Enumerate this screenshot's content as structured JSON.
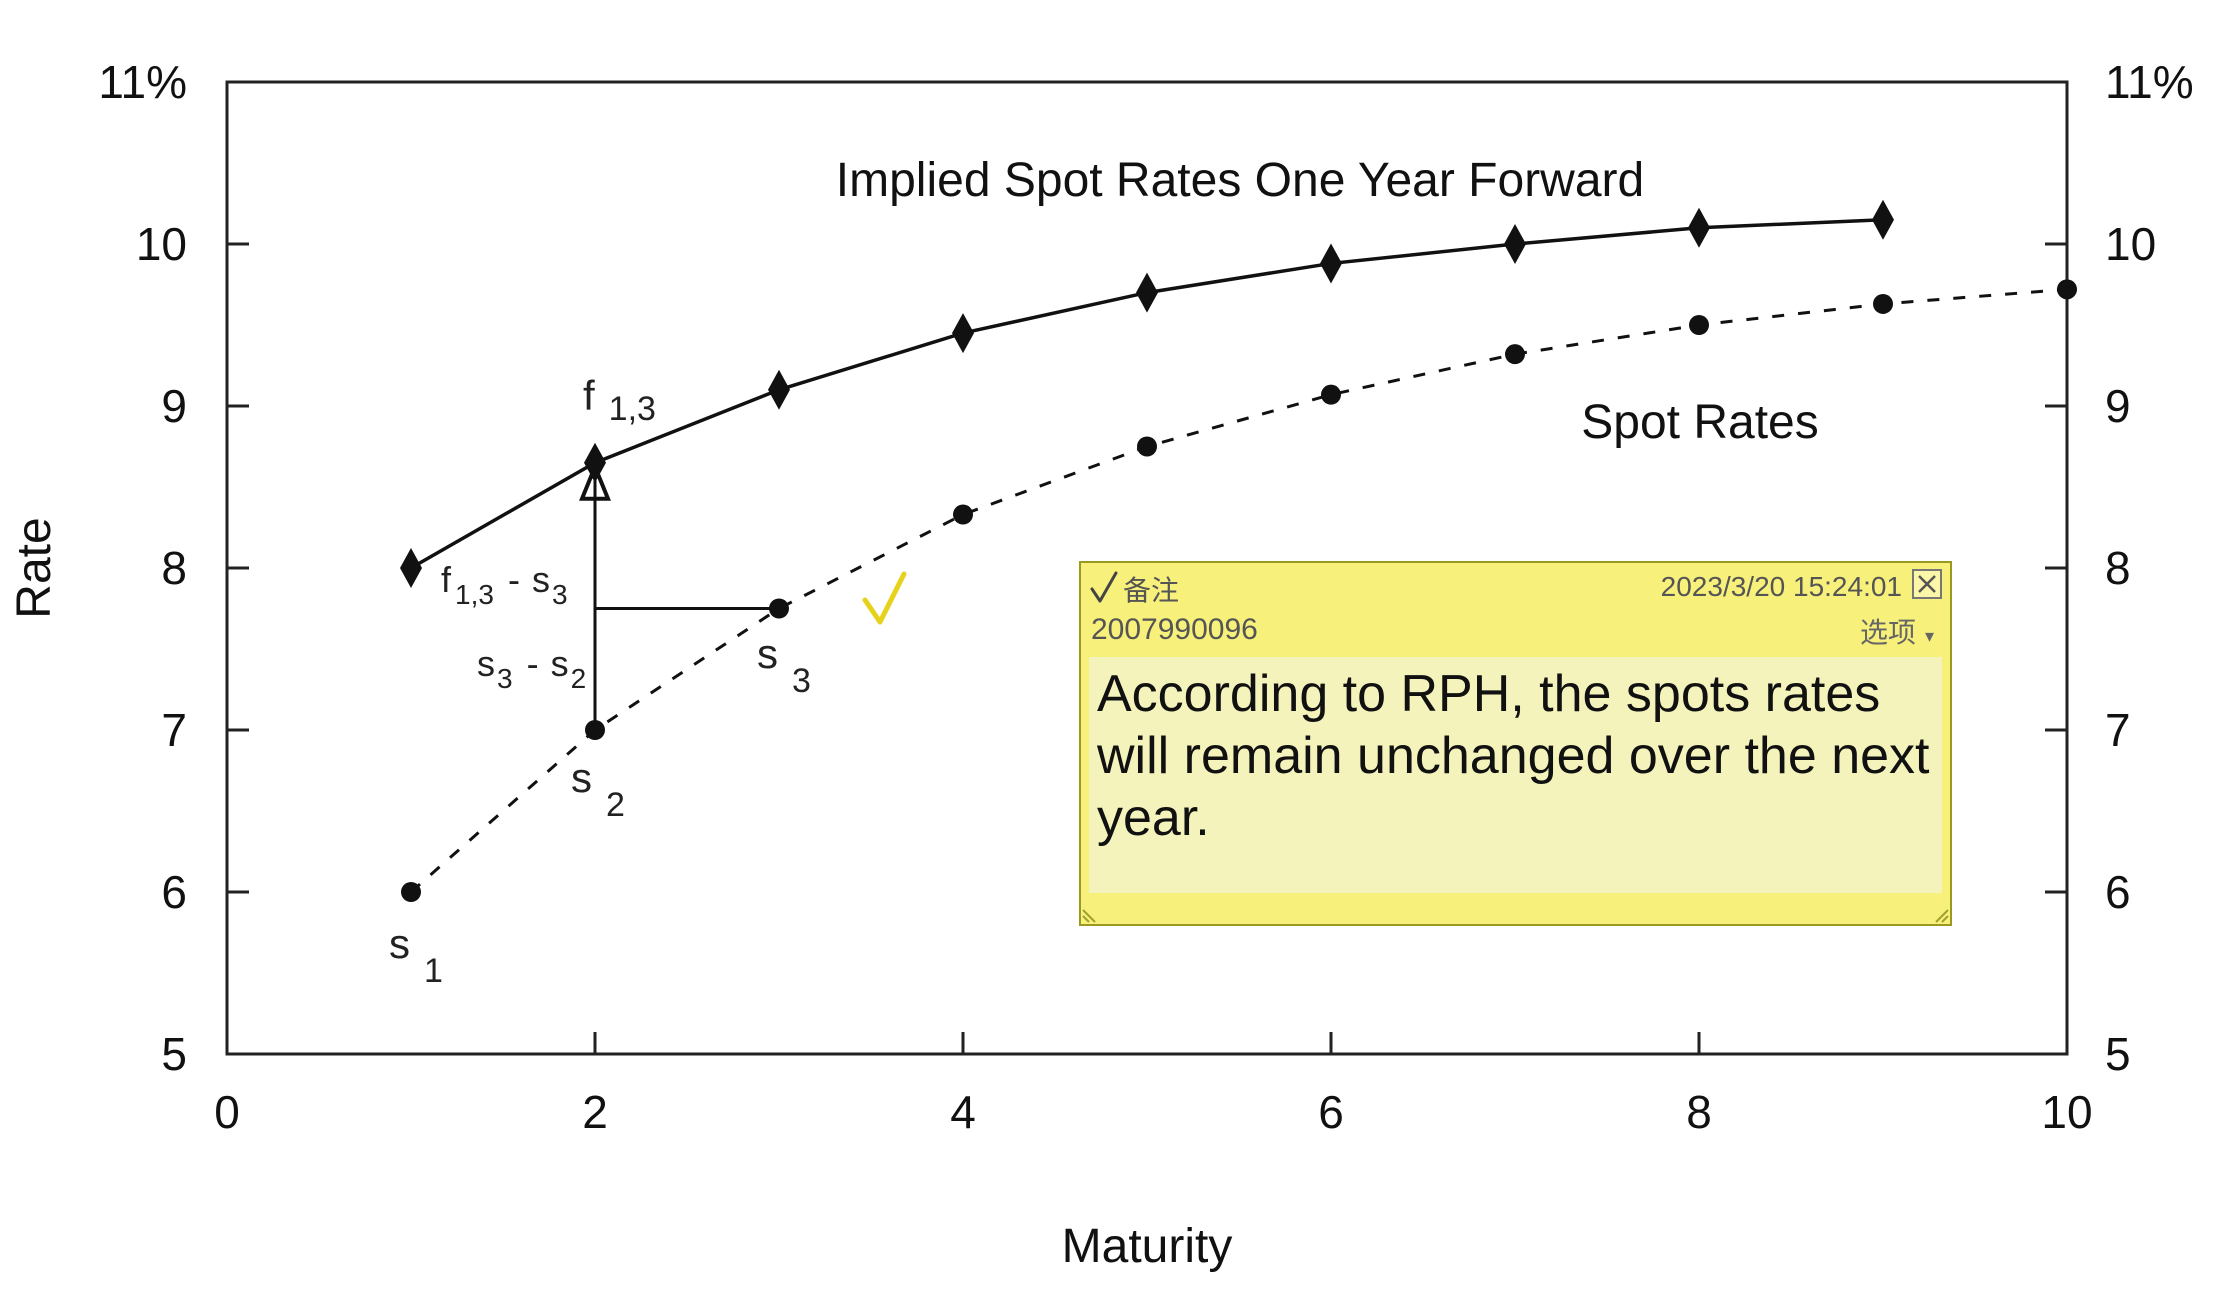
{
  "chart_data": {
    "type": "line",
    "title": "",
    "xlabel": "Maturity",
    "ylabel": "Rate",
    "xlim": [
      0,
      10
    ],
    "ylim": [
      5,
      11
    ],
    "x_ticks": [
      "0",
      "2",
      "4",
      "6",
      "8",
      "10"
    ],
    "y_ticks": [
      "5",
      "6",
      "7",
      "8",
      "9",
      "10",
      "11%"
    ],
    "right_y_ticks": [
      "5",
      "6",
      "7",
      "8",
      "9",
      "10",
      "11%"
    ],
    "grid": false,
    "series": [
      {
        "name": "Implied Spot Rates One Year Forward",
        "style": "solid",
        "marker": "diamond",
        "x": [
          1,
          2,
          3,
          4,
          5,
          6,
          7,
          8,
          9
        ],
        "y": [
          8.0,
          8.65,
          9.1,
          9.45,
          9.7,
          9.88,
          10.0,
          10.1,
          10.15
        ]
      },
      {
        "name": "Spot Rates",
        "style": "dashed",
        "marker": "circle",
        "x": [
          1,
          2,
          3,
          4,
          5,
          6,
          7,
          8,
          9,
          10
        ],
        "y": [
          6.0,
          7.0,
          7.75,
          8.33,
          8.75,
          9.07,
          9.32,
          9.5,
          9.63,
          9.72
        ]
      }
    ],
    "annotations": {
      "f13": {
        "main": "f",
        "sub": "1,3"
      },
      "s1": {
        "main": "s",
        "sub": "1"
      },
      "s2": {
        "main": "s",
        "sub": "2"
      },
      "s3": {
        "main": "s",
        "sub": "3"
      },
      "diff_f_s3": {
        "a": "f",
        "a_sub": "1,3",
        "sep": "-",
        "b": "s",
        "b_sub": "3"
      },
      "diff_s3_s2": {
        "a": "s",
        "a_sub": "3",
        "sep": "-",
        "b": "s",
        "b_sub": "2"
      }
    }
  },
  "note": {
    "tag": "备注",
    "datetime": "2023/3/20 15:24:01",
    "author": "2007990096",
    "options_label": "选项",
    "body": "According to RPH, the spots rates will remain unchanged over the next year."
  },
  "colors": {
    "note_background": "#f7f07a",
    "note_body": "#f5f3bc",
    "checkmark": "#e6d21a",
    "ink": "#111111"
  }
}
